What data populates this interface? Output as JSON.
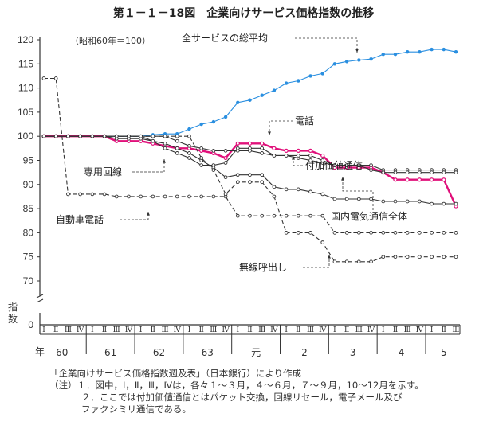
{
  "title": "第１－１－18図　企業向けサービス価格指数の推移",
  "chart_data": {
    "type": "line",
    "base_note": "（昭和60年＝100）",
    "ylabel": "指数",
    "xlabel": "年",
    "y_ticks": [
      120,
      115,
      110,
      105,
      100,
      95,
      90,
      85,
      80,
      75,
      70
    ],
    "y_zero": 0,
    "ylim": [
      68,
      120
    ],
    "quarter_labels": [
      "Ⅰ",
      "Ⅱ",
      "Ⅲ",
      "Ⅳ"
    ],
    "year_labels": [
      "60",
      "61",
      "62",
      "63",
      "元",
      "2",
      "3",
      "4",
      "5"
    ],
    "series": [
      {
        "name": "全サービスの総平均",
        "color": "#2a8fe0",
        "style": "dotted-marker",
        "values": [
          100,
          100,
          100,
          100,
          100,
          100,
          100,
          100,
          100,
          100.3,
          100.5,
          100.5,
          101.5,
          102.5,
          103,
          104,
          107,
          107.5,
          108.5,
          109.5,
          111,
          111.5,
          112.5,
          113,
          115,
          115.5,
          115.8,
          116,
          117,
          117,
          117.5,
          117.5,
          118,
          118,
          117.5
        ]
      },
      {
        "name": "電話",
        "color": "#e0107a",
        "style": "bold",
        "values": [
          100,
          100,
          100,
          100,
          100,
          100,
          99,
          99,
          99,
          98.5,
          98,
          97.5,
          97.5,
          97,
          96.5,
          95.5,
          98.5,
          98.5,
          98.5,
          97.5,
          97,
          97,
          97,
          96,
          93.5,
          93.5,
          93.5,
          93.5,
          92.5,
          91,
          91,
          91,
          91,
          91,
          85.5
        ]
      },
      {
        "name": "付加価値通信",
        "color": "#333333",
        "style": "marker",
        "values": [
          100,
          100,
          100,
          100,
          100,
          100,
          100,
          100,
          100,
          100,
          100,
          99,
          98,
          97.5,
          97,
          97,
          97,
          97,
          96.5,
          96,
          96,
          95.5,
          95,
          94.5,
          94,
          94,
          94,
          94,
          93,
          93,
          93,
          93,
          93,
          93,
          93
        ]
      },
      {
        "name": "専用回線",
        "color": "#333333",
        "style": "marker",
        "values": [
          100,
          100,
          100,
          100,
          100,
          100,
          100,
          100,
          100,
          99,
          97.5,
          96.5,
          95.5,
          94,
          94,
          94.5,
          97.5,
          97.5,
          97.5,
          96,
          96,
          96,
          96,
          95,
          94,
          94,
          94,
          93,
          92.5,
          92.5,
          92.5,
          92.5,
          92.5,
          92.5,
          92.5
        ]
      },
      {
        "name": "国内電気通信全体",
        "color": "#333333",
        "style": "marker",
        "values": [
          100,
          100,
          100,
          100,
          100,
          100,
          99.5,
          99.5,
          99.5,
          99,
          98.5,
          97.5,
          96.5,
          95,
          93.5,
          91.5,
          92,
          92,
          92,
          89.5,
          89,
          89,
          88.5,
          88,
          87,
          87,
          87,
          87,
          86.5,
          86.5,
          86.5,
          86.5,
          86,
          86,
          86
        ]
      },
      {
        "name": "自動車電話",
        "color": "#333333",
        "style": "dashed-marker",
        "values": [
          112,
          112,
          88,
          88,
          88,
          88,
          87.5,
          87.5,
          87.5,
          87.5,
          87.5,
          87.5,
          87.5,
          87.5,
          87.5,
          87.5,
          83.5,
          83.5,
          83.5,
          83.5,
          83.5,
          83.5,
          83.5,
          83.5,
          80,
          80,
          80,
          80,
          80,
          80,
          80,
          80,
          80,
          80,
          80
        ]
      },
      {
        "name": "無線呼出し",
        "color": "#333333",
        "style": "dashed-marker",
        "values": [
          100,
          100,
          100,
          100,
          100,
          100,
          100,
          100,
          100,
          100,
          100,
          100,
          100,
          95.5,
          93,
          88,
          90.5,
          90.5,
          90.5,
          87.5,
          80,
          80,
          80,
          78,
          74,
          74,
          74,
          74,
          75,
          75,
          75,
          75,
          75,
          75,
          75
        ]
      }
    ],
    "grid": false
  },
  "notes": {
    "source": "「企業向けサービス価格指数週及表」（日本銀行）により作成",
    "note1": "（注）１．図中，Ⅰ，Ⅱ，Ⅲ，Ⅳは，各々１～３月，４～６月，７～９月，10～12月を示す。",
    "note2": "２．ここでは付加価値通信とはパケット交換，回線リセール，電子メール及び",
    "note3": "ファクシミリ通信である。"
  }
}
